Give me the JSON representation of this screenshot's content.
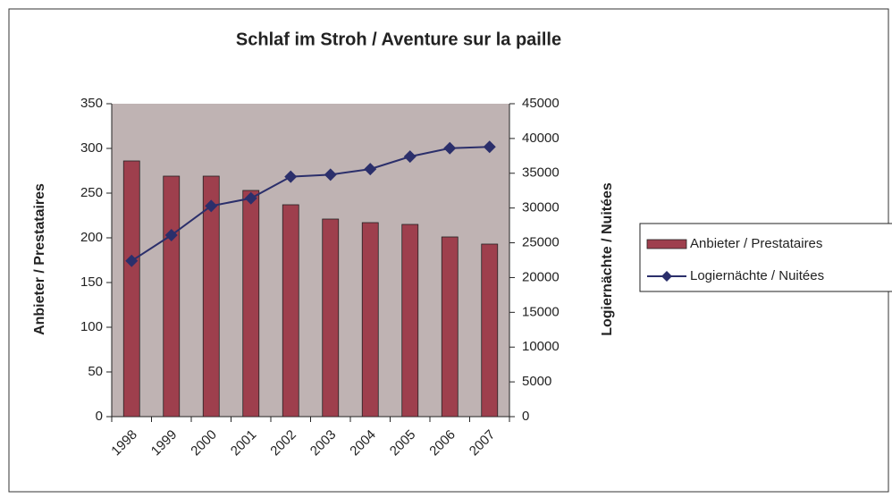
{
  "chart_data": {
    "type": "bar",
    "title": "Schlaf im Stroh / Aventure sur la paille",
    "y_label": "Anbieter / Prestataires",
    "y2_label": "Logiernächte / Nuitées",
    "categories": [
      "1998",
      "1999",
      "2000",
      "2001",
      "2002",
      "2003",
      "2004",
      "2005",
      "2006",
      "2007"
    ],
    "series": [
      {
        "name": "Anbieter / Prestataires",
        "type": "bar",
        "color": "#9e3f4d",
        "values": [
          286,
          269,
          269,
          253,
          237,
          221,
          217,
          215,
          201,
          193
        ]
      },
      {
        "name": "Logiernächte / Nuitées",
        "type": "line",
        "axis": "y2",
        "color": "#2b2f6b",
        "values": [
          22400,
          26100,
          30300,
          31400,
          34500,
          34800,
          35600,
          37400,
          38600,
          38800
        ]
      }
    ],
    "ylim": [
      0,
      350
    ],
    "yticks": [
      0,
      50,
      100,
      150,
      200,
      250,
      300,
      350
    ],
    "y2lim": [
      0,
      45000
    ],
    "y2ticks": [
      0,
      5000,
      10000,
      15000,
      20000,
      25000,
      30000,
      35000,
      40000,
      45000
    ],
    "plot_background": "#bfb3b3",
    "legend": "right"
  }
}
